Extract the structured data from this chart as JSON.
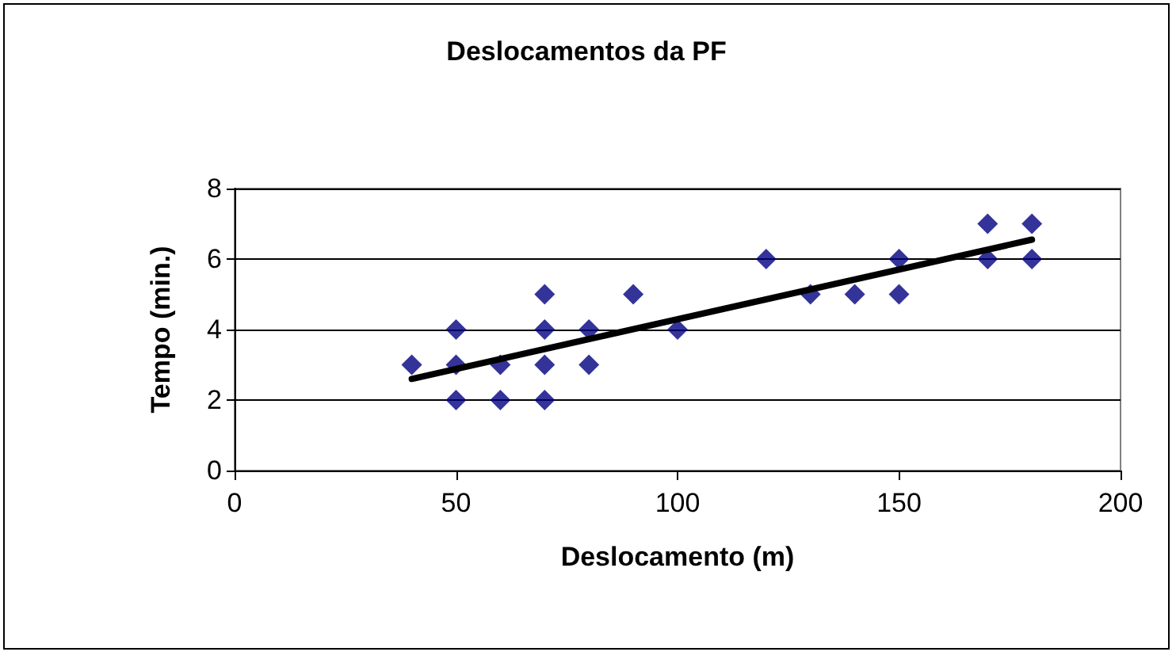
{
  "chart_data": {
    "type": "scatter",
    "title": "Deslocamentos da PF",
    "xlabel": "Deslocamento (m)",
    "ylabel": "Tempo (min.)",
    "xlim": [
      0,
      200
    ],
    "xticks": [
      0,
      50,
      100,
      150,
      200
    ],
    "ylim": [
      0,
      8
    ],
    "yticks": [
      0,
      2,
      4,
      6,
      8
    ],
    "grid": "y",
    "marker": "diamond",
    "series": [
      {
        "color": "#000080",
        "x": [
          40,
          50,
          50,
          50,
          60,
          60,
          70,
          70,
          70,
          70,
          80,
          80,
          90,
          100,
          120,
          130,
          140,
          150,
          150,
          170,
          170,
          180,
          180
        ],
        "values": [
          3,
          4,
          3,
          2,
          3,
          2,
          5,
          4,
          3,
          2,
          4,
          3,
          5,
          4,
          6,
          5,
          5,
          6,
          5,
          7,
          6,
          7,
          6
        ]
      },
      {
        "type": "line",
        "color": "#000000",
        "x": [
          40,
          180
        ],
        "values": [
          2.6,
          6.55
        ],
        "marker": "none",
        "line_style": "solid"
      }
    ]
  }
}
